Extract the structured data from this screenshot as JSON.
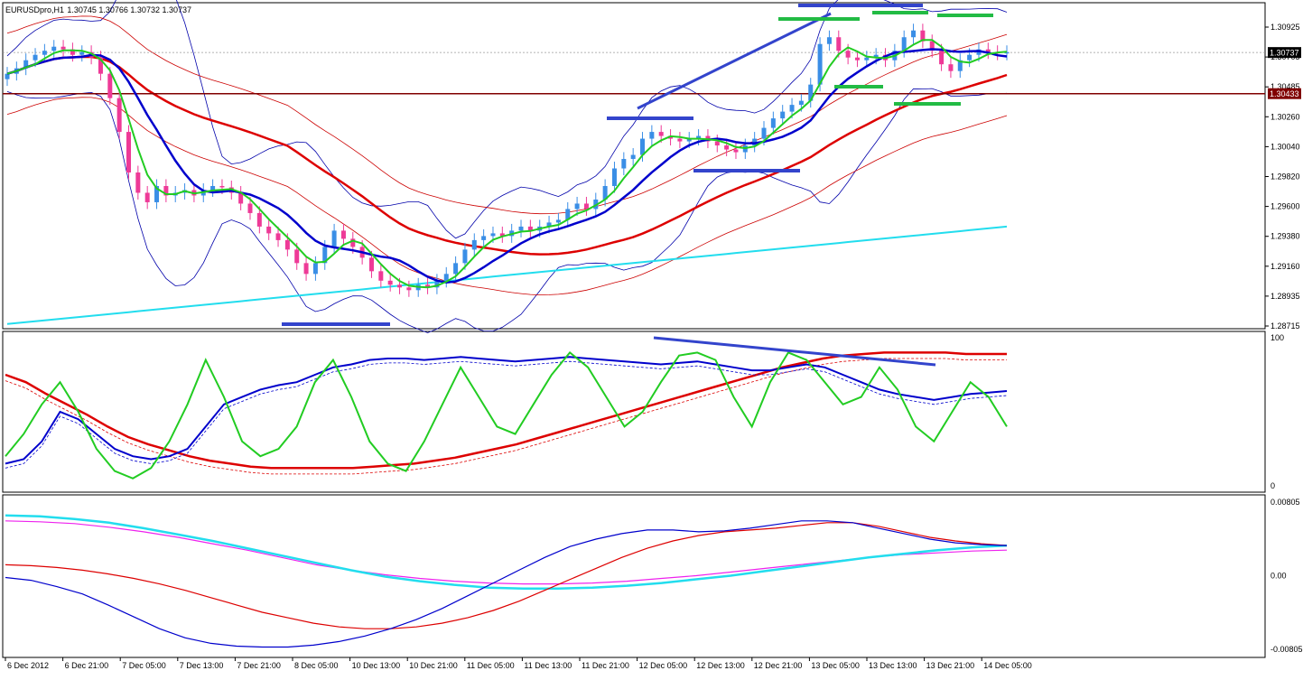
{
  "header": {
    "symbol": "EURUSDpro,H1",
    "ohlc": "1.30745 1.30766 1.30732 1.30737"
  },
  "colors": {
    "background": "#ffffff",
    "bull_candle": "#3a8ee6",
    "bear_candle": "#ee3a97",
    "ema_fast": "#22cc22",
    "ema_slow": "#0000cc",
    "sma_long": "#dd0000",
    "sma_very_long": "#22ddee",
    "band_outer": "#0000aa",
    "band_red": "#cc0000",
    "support_line": "#800000",
    "current_price_badge": "#000000",
    "support_badge": "#800000",
    "trendline_blue": "#3344cc",
    "level_green": "#22bb44",
    "macd_signal": "#ee22ee"
  },
  "chart_data": [
    {
      "type": "candlestick",
      "panel": "price",
      "symbol": "EURUSDpro,H1",
      "ylim": [
        1.28715,
        1.30925
      ],
      "y_ticks": [
        "1.30925",
        "1.30705",
        "1.30485",
        "1.30260",
        "1.30040",
        "1.29820",
        "1.29600",
        "1.29380",
        "1.29160",
        "1.28935",
        "1.28715"
      ],
      "current_price": "1.30737",
      "support_level": "1.30433",
      "x_ticks": [
        "6 Dec 2012",
        "6 Dec 21:00",
        "7 Dec 05:00",
        "7 Dec 13:00",
        "7 Dec 21:00",
        "8 Dec 05:00",
        "10 Dec 13:00",
        "10 Dec 21:00",
        "11 Dec 05:00",
        "11 Dec 13:00",
        "11 Dec 21:00",
        "12 Dec 05:00",
        "12 Dec 13:00",
        "12 Dec 21:00",
        "13 Dec 05:00",
        "13 Dec 13:00",
        "13 Dec 21:00",
        "14 Dec 05:00"
      ],
      "closes": [
        1.3058,
        1.3062,
        1.3068,
        1.3072,
        1.3075,
        1.3078,
        1.3076,
        1.3072,
        1.3074,
        1.307,
        1.3058,
        1.304,
        1.3015,
        1.2985,
        1.297,
        1.2963,
        1.2975,
        1.2968,
        1.297,
        1.2972,
        1.2968,
        1.2972,
        1.2975,
        1.2974,
        1.297,
        1.2962,
        1.2955,
        1.2945,
        1.294,
        1.2935,
        1.2928,
        1.2918,
        1.291,
        1.2918,
        1.293,
        1.2942,
        1.2936,
        1.293,
        1.2922,
        1.2912,
        1.2905,
        1.2902,
        1.29,
        1.2898,
        1.2902,
        1.29,
        1.2905,
        1.291,
        1.2918,
        1.2928,
        1.2935,
        1.2938,
        1.294,
        1.2938,
        1.2942,
        1.2945,
        1.2942,
        1.2945,
        1.2948,
        1.295,
        1.2958,
        1.2962,
        1.2958,
        1.2965,
        1.2975,
        1.2988,
        1.2995,
        1.2998,
        1.301,
        1.3015,
        1.3012,
        1.301,
        1.3008,
        1.301,
        1.3012,
        1.3008,
        1.3005,
        1.3002,
        1.3,
        1.3005,
        1.301,
        1.3018,
        1.3025,
        1.303,
        1.3035,
        1.3038,
        1.305,
        1.308,
        1.3085,
        1.3075,
        1.307,
        1.3068,
        1.307,
        1.3072,
        1.3068,
        1.3075,
        1.3085,
        1.309,
        1.3082,
        1.3075,
        1.3065,
        1.306,
        1.3068,
        1.3072,
        1.3076,
        1.3074,
        1.3073,
        1.3074
      ]
    },
    {
      "type": "line",
      "panel": "stochastic",
      "ylim": [
        0,
        100
      ],
      "y_ticks": [
        "100",
        "0"
      ],
      "series_note": "oscillator lines",
      "fast_values": [
        20,
        35,
        55,
        70,
        50,
        25,
        10,
        5,
        12,
        30,
        55,
        85,
        60,
        30,
        20,
        25,
        40,
        70,
        85,
        60,
        30,
        15,
        10,
        30,
        55,
        80,
        60,
        40,
        35,
        55,
        75,
        90,
        80,
        60,
        40,
        50,
        70,
        88,
        90,
        85,
        60,
        40,
        70,
        90,
        85,
        70,
        55,
        60,
        80,
        65,
        40,
        30,
        50,
        70,
        60,
        40
      ],
      "slow_values": [
        15,
        18,
        30,
        50,
        45,
        35,
        25,
        20,
        18,
        20,
        25,
        40,
        55,
        60,
        65,
        68,
        70,
        75,
        80,
        82,
        85,
        86,
        86,
        85,
        86,
        87,
        86,
        85,
        84,
        85,
        86,
        87,
        86,
        85,
        84,
        83,
        82,
        83,
        84,
        82,
        80,
        78,
        78,
        80,
        82,
        80,
        75,
        70,
        65,
        62,
        60,
        58,
        60,
        62,
        63,
        64
      ],
      "trend_values": [
        75,
        70,
        62,
        55,
        48,
        40,
        33,
        28,
        24,
        20,
        17,
        15,
        13,
        12,
        12,
        12,
        12,
        12,
        13,
        14,
        15,
        17,
        19,
        22,
        25,
        28,
        32,
        36,
        40,
        44,
        48,
        52,
        56,
        60,
        64,
        68,
        72,
        76,
        80,
        83,
        86,
        88,
        89,
        90,
        90,
        90,
        90,
        89,
        89,
        89
      ]
    },
    {
      "type": "line",
      "panel": "macd",
      "ylim": [
        -0.00805,
        0.00805
      ],
      "y_ticks": [
        "0.00805",
        "0.00",
        "-0.00805"
      ],
      "line_a": [
        -0.0002,
        -0.0005,
        -0.0012,
        -0.002,
        -0.0032,
        -0.0045,
        -0.0058,
        -0.0068,
        -0.0074,
        -0.0077,
        -0.0078,
        -0.0078,
        -0.0076,
        -0.0072,
        -0.0066,
        -0.0058,
        -0.0048,
        -0.0036,
        -0.0022,
        -0.0008,
        0.0006,
        0.002,
        0.0032,
        0.004,
        0.0046,
        0.005,
        0.005,
        0.0048,
        0.0049,
        0.0052,
        0.0056,
        0.006,
        0.006,
        0.0058,
        0.0052,
        0.0046,
        0.004,
        0.0036,
        0.0034,
        0.0033
      ],
      "line_b": [
        0.0012,
        0.0011,
        0.0009,
        0.0006,
        0.0002,
        -0.0003,
        -0.0009,
        -0.0016,
        -0.0024,
        -0.0032,
        -0.004,
        -0.0046,
        -0.0052,
        -0.0056,
        -0.0058,
        -0.0058,
        -0.0056,
        -0.0052,
        -0.0046,
        -0.0038,
        -0.0028,
        -0.0016,
        -0.0004,
        0.0008,
        0.002,
        0.003,
        0.0038,
        0.0044,
        0.0048,
        0.005,
        0.0052,
        0.0055,
        0.0058,
        0.0058,
        0.0054,
        0.0048,
        0.0042,
        0.0038,
        0.0035,
        0.0033
      ],
      "signal_a": [
        0.0066,
        0.0065,
        0.0062,
        0.0058,
        0.0052,
        0.0045,
        0.0038,
        0.003,
        0.0022,
        0.0014,
        0.0006,
        -0.0001,
        -0.0006,
        -0.001,
        -0.0013,
        -0.0014,
        -0.0014,
        -0.0013,
        -0.0011,
        -0.0008,
        -0.0004,
        0.0,
        0.0005,
        0.001,
        0.0015,
        0.002,
        0.0024,
        0.0028,
        0.0031,
        0.0033
      ],
      "signal_b": [
        0.006,
        0.0059,
        0.0057,
        0.0053,
        0.0048,
        0.0042,
        0.0035,
        0.0028,
        0.002,
        0.0012,
        0.0006,
        0.0001,
        -0.0003,
        -0.0006,
        -0.0008,
        -0.0009,
        -0.0009,
        -0.0008,
        -0.0006,
        -0.0003,
        0.0,
        0.0004,
        0.0008,
        0.0012,
        0.0016,
        0.002,
        0.0023,
        0.0025,
        0.0027,
        0.0028
      ]
    }
  ]
}
